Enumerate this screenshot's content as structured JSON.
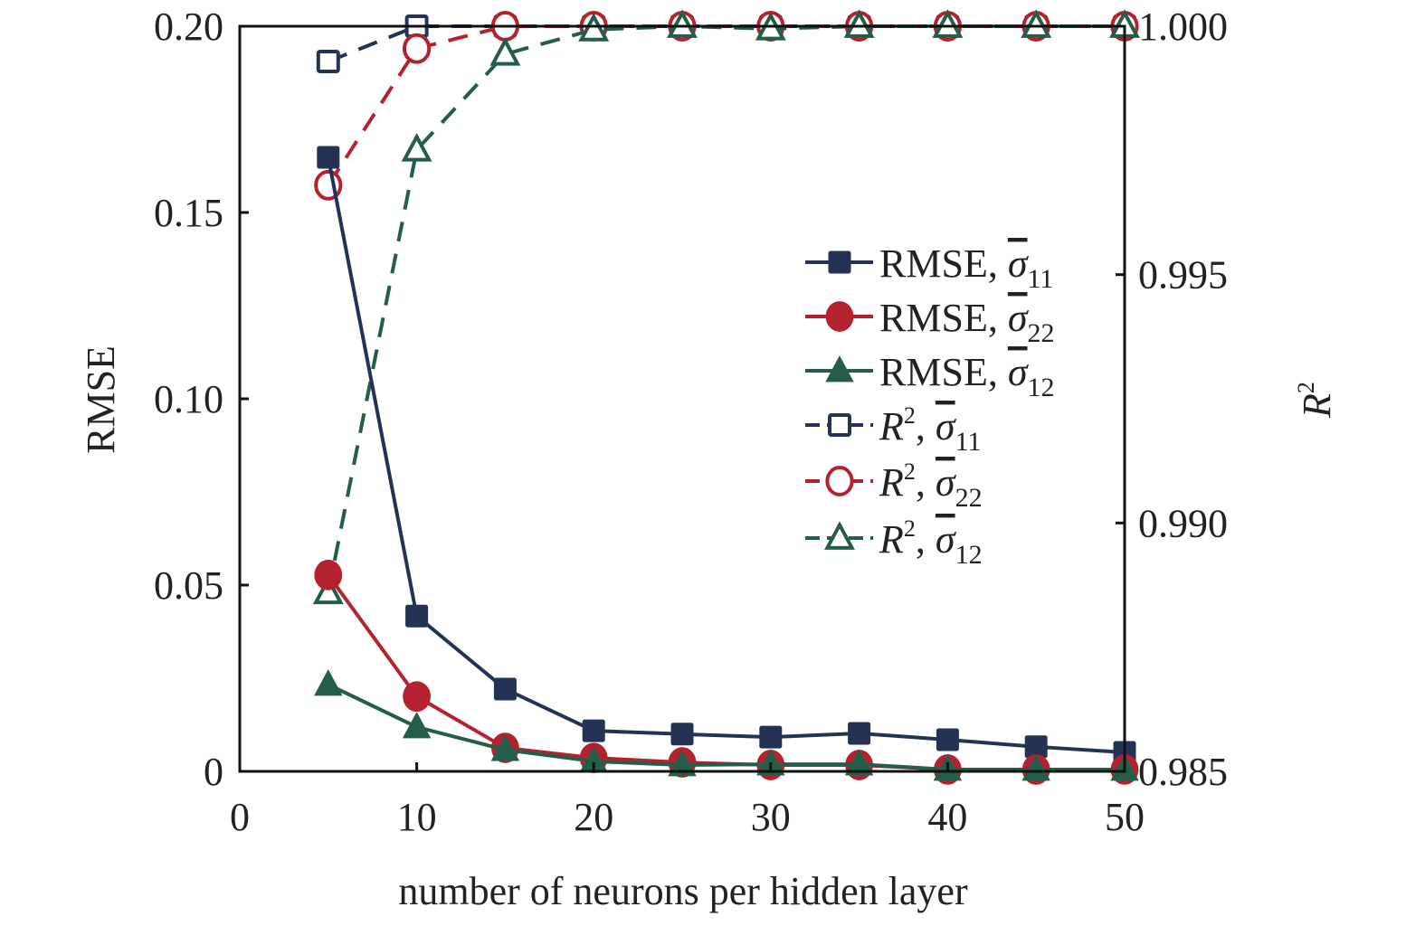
{
  "chart_data": {
    "type": "line",
    "xlabel": "number of neurons per hidden layer",
    "ylabel": "RMSE",
    "y2label": "R",
    "y2label_sup": "2",
    "xlim": [
      0,
      50
    ],
    "ylim": [
      0,
      0.2
    ],
    "y2lim": [
      0.985,
      1.0
    ],
    "x_ticks": [
      "0",
      "10",
      "20",
      "30",
      "40",
      "50"
    ],
    "y_ticks": [
      "0",
      "0.05",
      "0.10",
      "0.15",
      "0.20"
    ],
    "y2_ticks": [
      "0.985",
      "0.990",
      "0.995",
      "1.000"
    ],
    "grid": false,
    "legend_position": "center-right",
    "x": [
      5,
      10,
      15,
      20,
      25,
      30,
      35,
      40,
      45,
      50
    ],
    "series": [
      {
        "name": "RMSE, σ11",
        "prefix": "RMSE, ",
        "sub": "11",
        "axis": "left",
        "color": "#243355",
        "marker": "square",
        "filled": true,
        "dashed": false,
        "values": [
          0.1648,
          0.0417,
          0.0221,
          0.0109,
          0.01,
          0.0092,
          0.0102,
          0.0085,
          0.0066,
          0.0051
        ]
      },
      {
        "name": "RMSE, σ22",
        "prefix": "RMSE, ",
        "sub": "22",
        "axis": "left",
        "color": "#b5222f",
        "marker": "circle",
        "filled": true,
        "dashed": false,
        "values": [
          0.0527,
          0.0201,
          0.0063,
          0.0036,
          0.0024,
          0.0017,
          0.0017,
          0.0005,
          0.0005,
          0.0005
        ]
      },
      {
        "name": "RMSE, σ12",
        "prefix": "RMSE, ",
        "sub": "12",
        "axis": "left",
        "color": "#245e48",
        "marker": "triangle",
        "filled": true,
        "dashed": false,
        "values": [
          0.0233,
          0.0119,
          0.0058,
          0.0027,
          0.0017,
          0.0019,
          0.0019,
          0.0005,
          0.0005,
          0.0005
        ]
      },
      {
        "name": "R2, σ11",
        "prefix": "R",
        "sup": "2",
        "sub": "11",
        "axis": "right",
        "color": "#243355",
        "marker": "square",
        "filled": false,
        "dashed": true,
        "values": [
          0.99929,
          1.0,
          1.0,
          1.0,
          1.0,
          1.0,
          1.0,
          1.0,
          1.0,
          1.0
        ]
      },
      {
        "name": "R2, σ22",
        "prefix": "R",
        "sup": "2",
        "sub": "22",
        "axis": "right",
        "color": "#b5222f",
        "marker": "circle",
        "filled": false,
        "dashed": true,
        "values": [
          0.9968,
          0.99955,
          1.0,
          1.0,
          1.0,
          1.0,
          1.0,
          1.0,
          1.0,
          1.0
        ]
      },
      {
        "name": "R2, σ12",
        "prefix": "R",
        "sup": "2",
        "sub": "12",
        "axis": "right",
        "color": "#245e48",
        "marker": "triangle",
        "filled": false,
        "dashed": true,
        "values": [
          0.9886,
          0.99751,
          0.99944,
          0.99993,
          1.0,
          0.99995,
          1.0,
          1.0,
          1.0,
          1.0
        ]
      }
    ]
  }
}
